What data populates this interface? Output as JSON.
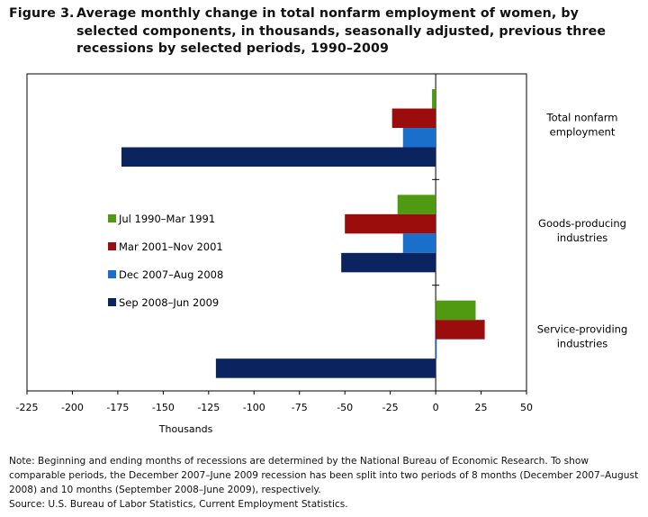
{
  "title": {
    "label": "Figure 3.",
    "text": "Average monthly change in total nonfarm employment of women, by selected components, in thousands, seasonally adjusted, previous three recessions by selected periods, 1990–2009"
  },
  "notes": {
    "note": "Note: Beginning and ending months of recessions are determined by the National Bureau of Economic Research. To show comparable periods, the December 2007–June 2009 recession has been split into two periods of 8 months (December 2007–August 2008) and 10 months (September 2008–June 2009), respectively.",
    "source": "Source: U.S. Bureau of Labor Statistics, Current Employment Statistics."
  },
  "chart_data": {
    "type": "bar",
    "orientation": "horizontal",
    "categories": [
      [
        "Total nonfarm",
        "employment"
      ],
      [
        "Goods-producing",
        "industries"
      ],
      [
        "Service-providing",
        "industries"
      ]
    ],
    "series": [
      {
        "name": "Jul 1990–Mar 1991",
        "color": "#4f9a10",
        "values": [
          -2,
          -21,
          22
        ]
      },
      {
        "name": "Mar 2001–Nov 2001",
        "color": "#9b0d0d",
        "values": [
          -24,
          -50,
          27
        ]
      },
      {
        "name": "Dec 2007–Aug 2008",
        "color": "#1a6fcb",
        "values": [
          -18,
          -18,
          0.5
        ]
      },
      {
        "name": "Sep 2008–Jun 2009",
        "color": "#0b2460",
        "values": [
          -173,
          -52,
          -121
        ]
      }
    ],
    "xlabel": "Thousands",
    "xlim": [
      -225,
      50
    ],
    "xticks": [
      -225,
      -200,
      -175,
      -150,
      -125,
      -100,
      -75,
      -50,
      -25,
      0,
      25,
      50
    ],
    "grid": false,
    "legend_position": "left-middle"
  }
}
